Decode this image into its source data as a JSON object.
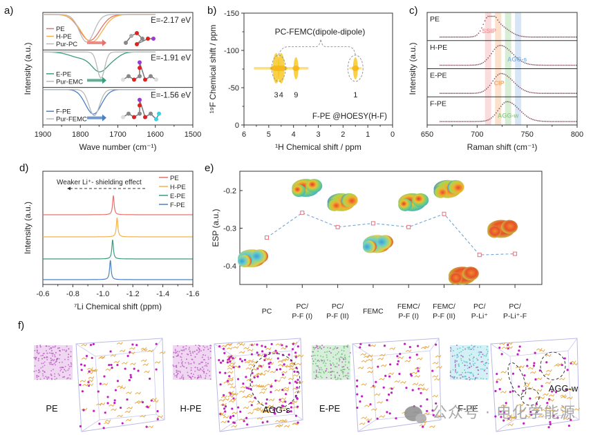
{
  "panel_labels": [
    "a)",
    "b)",
    "c)",
    "d)",
    "e)",
    "f)"
  ],
  "colors": {
    "PE": "#e8706b",
    "H-PE": "#f5b04a",
    "Pur": "#b8b8b8",
    "E-PE": "#3a9c7a",
    "F-PE": "#4a7fc4",
    "raman_dots": "#8a5a6a",
    "esp_line": "#6fa3d9",
    "esp_marker": "#e5707a",
    "hoesy": "#f7c51a",
    "SSIP": "#f39a9a",
    "CIP": "#f3a86a",
    "AGG-w": "#8fcf84",
    "AGG-s": "#8ab8e6"
  },
  "chart_data": [
    {
      "id": "a",
      "type": "line",
      "title": "",
      "xlabel": "Wave number (cm⁻¹)",
      "ylabel": "Intensity (a.u.)",
      "xlim": [
        1900,
        1500
      ],
      "xticks": [
        1900,
        1800,
        1700,
        1600,
        1500
      ],
      "stacked_panels": [
        {
          "energy_label": "E=-2.17 eV",
          "series": [
            {
              "name": "PE",
              "color_key": "PE",
              "minimum_x": 1775,
              "depth": 0.85,
              "width": 38
            },
            {
              "name": "H-PE",
              "color_key": "H-PE",
              "minimum_x": 1770,
              "depth": 0.9,
              "width": 40
            },
            {
              "name": "Pur-PC",
              "color_key": "Pur",
              "minimum_x": 1783,
              "depth": 0.9,
              "width": 28
            }
          ]
        },
        {
          "energy_label": "E=-1.91 eV",
          "series": [
            {
              "name": "E-PE",
              "color_key": "E-PE",
              "minimum_x": 1748,
              "depth": 0.6,
              "width": 30
            },
            {
              "name": "Pur-EMC",
              "color_key": "Pur",
              "minimum_x": 1745,
              "depth": 0.85,
              "width": 14
            }
          ]
        },
        {
          "energy_label": "E=-1.56 eV",
          "series": [
            {
              "name": "F-PE",
              "color_key": "F-PE",
              "minimum_x": 1765,
              "depth": 0.8,
              "width": 30
            },
            {
              "name": "Pur-FEMC",
              "color_key": "Pur",
              "minimum_x": 1763,
              "depth": 0.85,
              "width": 20
            }
          ]
        }
      ]
    },
    {
      "id": "b",
      "type": "scatter",
      "title": "PC-FEMC(dipole-dipole)",
      "annotation": "F-PE @HOESY(H-F)",
      "xlabel": "¹H Chemical shift / ppm",
      "ylabel": "¹⁹F Chemical shift / ppm",
      "xlim": [
        6,
        0
      ],
      "ylim": [
        0,
        -150
      ],
      "xticks": [
        6,
        5,
        4,
        3,
        2,
        1,
        0
      ],
      "yticks": [
        0,
        -50,
        -100,
        -150
      ],
      "cross_peaks": [
        {
          "label": "3",
          "x": 4.7,
          "y": -76
        },
        {
          "label": "4",
          "x": 4.5,
          "y": -76
        },
        {
          "label": "9",
          "x": 3.9,
          "y": -76
        },
        {
          "label": "1",
          "x": 1.5,
          "y": -76
        }
      ]
    },
    {
      "id": "c",
      "type": "scatter",
      "xlabel": "Raman shift (cm⁻¹)",
      "ylabel": "Intensity (a.u.)",
      "xlim": [
        650,
        800
      ],
      "xticks": [
        650,
        700,
        750,
        800
      ],
      "bands": [
        {
          "name": "SSIP",
          "x": 711
        },
        {
          "name": "CIP",
          "x": 721
        },
        {
          "name": "AGG-w",
          "x": 731
        },
        {
          "name": "AGG-s",
          "x": 741
        }
      ],
      "series": [
        {
          "name": "PE",
          "peak_x": 712,
          "shoulder_x": 722
        },
        {
          "name": "H-PE",
          "peak_x": 723
        },
        {
          "name": "E-PE",
          "peak_x": 724
        },
        {
          "name": "F-PE",
          "peak_x": 730
        }
      ]
    },
    {
      "id": "d",
      "type": "line",
      "xlabel": "⁷Li Chemical shift (ppm)",
      "ylabel": "Intensity (a.u.)",
      "xlim": [
        -0.6,
        -1.6
      ],
      "xticks": [
        -0.6,
        -0.8,
        -1.0,
        -1.2,
        -1.4,
        -1.6
      ],
      "annotation": "Weaker Li⁺- shielding effect",
      "series": [
        {
          "name": "PE",
          "color_key": "PE",
          "peak_x": -1.07
        },
        {
          "name": "H-PE",
          "color_key": "H-PE",
          "peak_x": -1.095
        },
        {
          "name": "E-PE",
          "color_key": "E-PE",
          "peak_x": -1.065
        },
        {
          "name": "F-PE",
          "color_key": "F-PE",
          "peak_x": -1.05
        }
      ]
    },
    {
      "id": "e",
      "type": "line",
      "ylabel": "ESP (a.u.)",
      "ylim": [
        -0.45,
        -0.15
      ],
      "yticks": [
        -0.2,
        -0.3,
        -0.4
      ],
      "categories": [
        [
          "PC"
        ],
        [
          "PC/",
          "P-F (I)"
        ],
        [
          "PC/",
          "P-F (II)"
        ],
        [
          "FEMC"
        ],
        [
          "FEMC/",
          "P-F (I)"
        ],
        [
          "FEMC/",
          "P-F (II)"
        ],
        [
          "PC/",
          "P-Li⁺"
        ],
        [
          "PC/",
          "P-Li⁺-F"
        ]
      ],
      "values": [
        -0.325,
        -0.259,
        -0.297,
        -0.287,
        -0.297,
        -0.262,
        -0.371,
        -0.368
      ],
      "esp_surfaces": [
        "below",
        "above",
        "above",
        "below",
        "above",
        "above",
        "below",
        "above"
      ]
    }
  ],
  "panel_f": {
    "systems": [
      {
        "name": "PE",
        "tint": "#c060c8"
      },
      {
        "name": "H-PE",
        "tint": "#c060c8",
        "annotation": "AGG-s"
      },
      {
        "name": "E-PE",
        "tint": "#5fbf6a"
      },
      {
        "name": "F-PE",
        "tint": "#4fc4d4",
        "annotation": "AGG-w"
      }
    ]
  },
  "watermark": "公众号 · 电化学能源"
}
